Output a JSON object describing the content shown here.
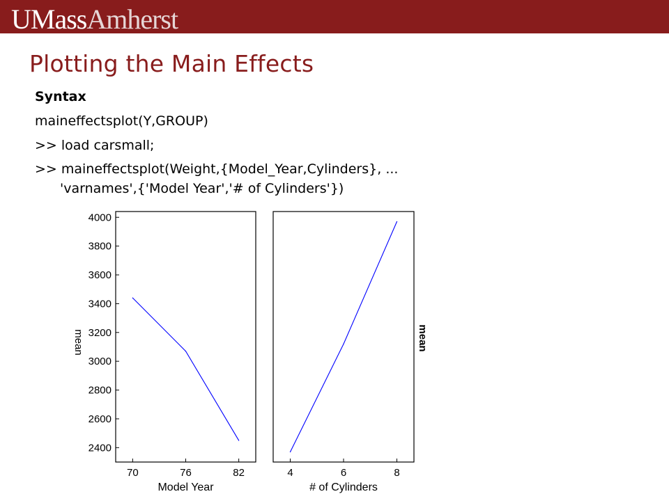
{
  "header": {
    "logo_text_primary": "UMass",
    "logo_text_secondary": "Amherst",
    "brand_color": "#881c1c"
  },
  "slide": {
    "title": "Plotting the Main Effects",
    "lines": [
      "Syntax",
      "maineffectsplot(Y,GROUP)",
      ">> load carsmall;",
      ">> maineffectsplot(Weight,{Model_Year,Cylinders}, ...",
      "'varnames',{'Model Year','# of Cylinders'})"
    ]
  },
  "chart_data": [
    {
      "type": "line",
      "xlabel": "Model Year",
      "ylabel": "mean",
      "x": [
        70,
        76,
        82
      ],
      "xticks": [
        "70",
        "76",
        "82"
      ],
      "series": [
        {
          "values": [
            3440,
            3070,
            2450
          ],
          "color": "#0000ff"
        }
      ],
      "ylim": [
        2300,
        4040
      ],
      "yticks": [
        2400,
        2600,
        2800,
        3000,
        3200,
        3400,
        3600,
        3800,
        4000
      ],
      "grid": false
    },
    {
      "type": "line",
      "xlabel": "# of Cylinders",
      "ylabel": "mean",
      "x": [
        4,
        6,
        8
      ],
      "xticks": [
        "4",
        "6",
        "8"
      ],
      "series": [
        {
          "values": [
            2370,
            3120,
            3970
          ],
          "color": "#0000ff"
        }
      ],
      "ylim": [
        2300,
        4040
      ],
      "grid": false
    }
  ]
}
